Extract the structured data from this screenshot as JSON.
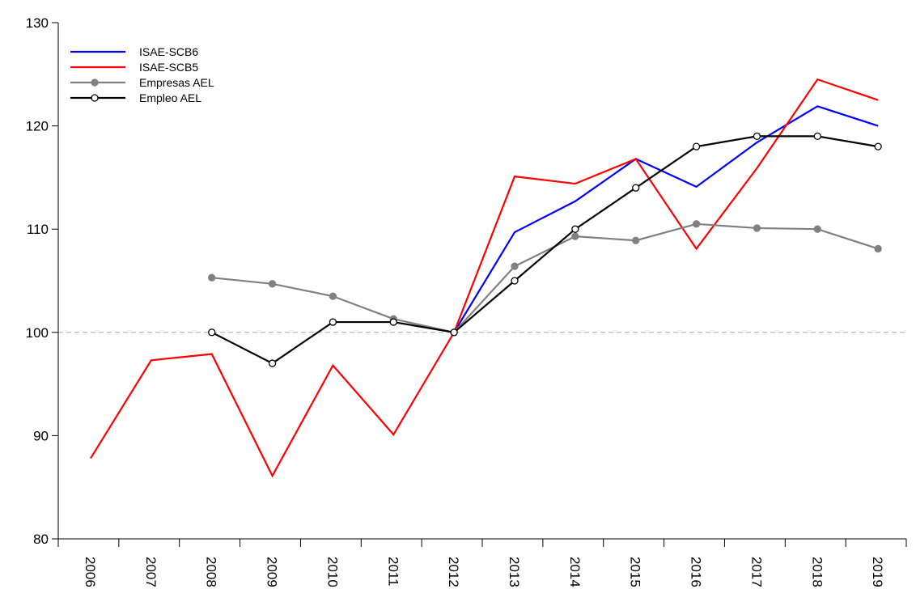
{
  "chart_data": {
    "type": "line",
    "categories": [
      "2006",
      "2007",
      "2008",
      "2009",
      "2010",
      "2011",
      "2012",
      "2013",
      "2014",
      "2015",
      "2016",
      "2017",
      "2018",
      "2019"
    ],
    "series": [
      {
        "name": "ISAE-SCB6",
        "color": "#0000ff",
        "marker": "none",
        "values": [
          null,
          null,
          null,
          null,
          null,
          null,
          100,
          109.7,
          112.7,
          116.8,
          114.1,
          118.4,
          121.9,
          120.0
        ]
      },
      {
        "name": "ISAE-SCB5",
        "color": "#ff0000",
        "marker": "none",
        "values": [
          87.8,
          97.3,
          97.9,
          86.1,
          96.8,
          90.1,
          100,
          115.1,
          114.4,
          116.8,
          108.1,
          115.9,
          124.5,
          122.5
        ]
      },
      {
        "name": "Empresas AEL",
        "color": "#808080",
        "marker": "filled",
        "values": [
          null,
          null,
          105.3,
          104.7,
          103.5,
          101.3,
          100,
          106.4,
          109.3,
          108.9,
          110.5,
          110.1,
          110.0,
          108.1
        ]
      },
      {
        "name": "Empleo AEL",
        "color": "#000000",
        "marker": "open",
        "values": [
          null,
          null,
          100,
          97.0,
          101.0,
          101.0,
          100,
          105.0,
          110.0,
          114.0,
          118.0,
          119.0,
          119.0,
          118.0
        ]
      }
    ],
    "ylim": [
      80,
      130
    ],
    "yticks": [
      80,
      90,
      100,
      110,
      120,
      130
    ],
    "reference_line": 100,
    "legend": "top-left"
  }
}
